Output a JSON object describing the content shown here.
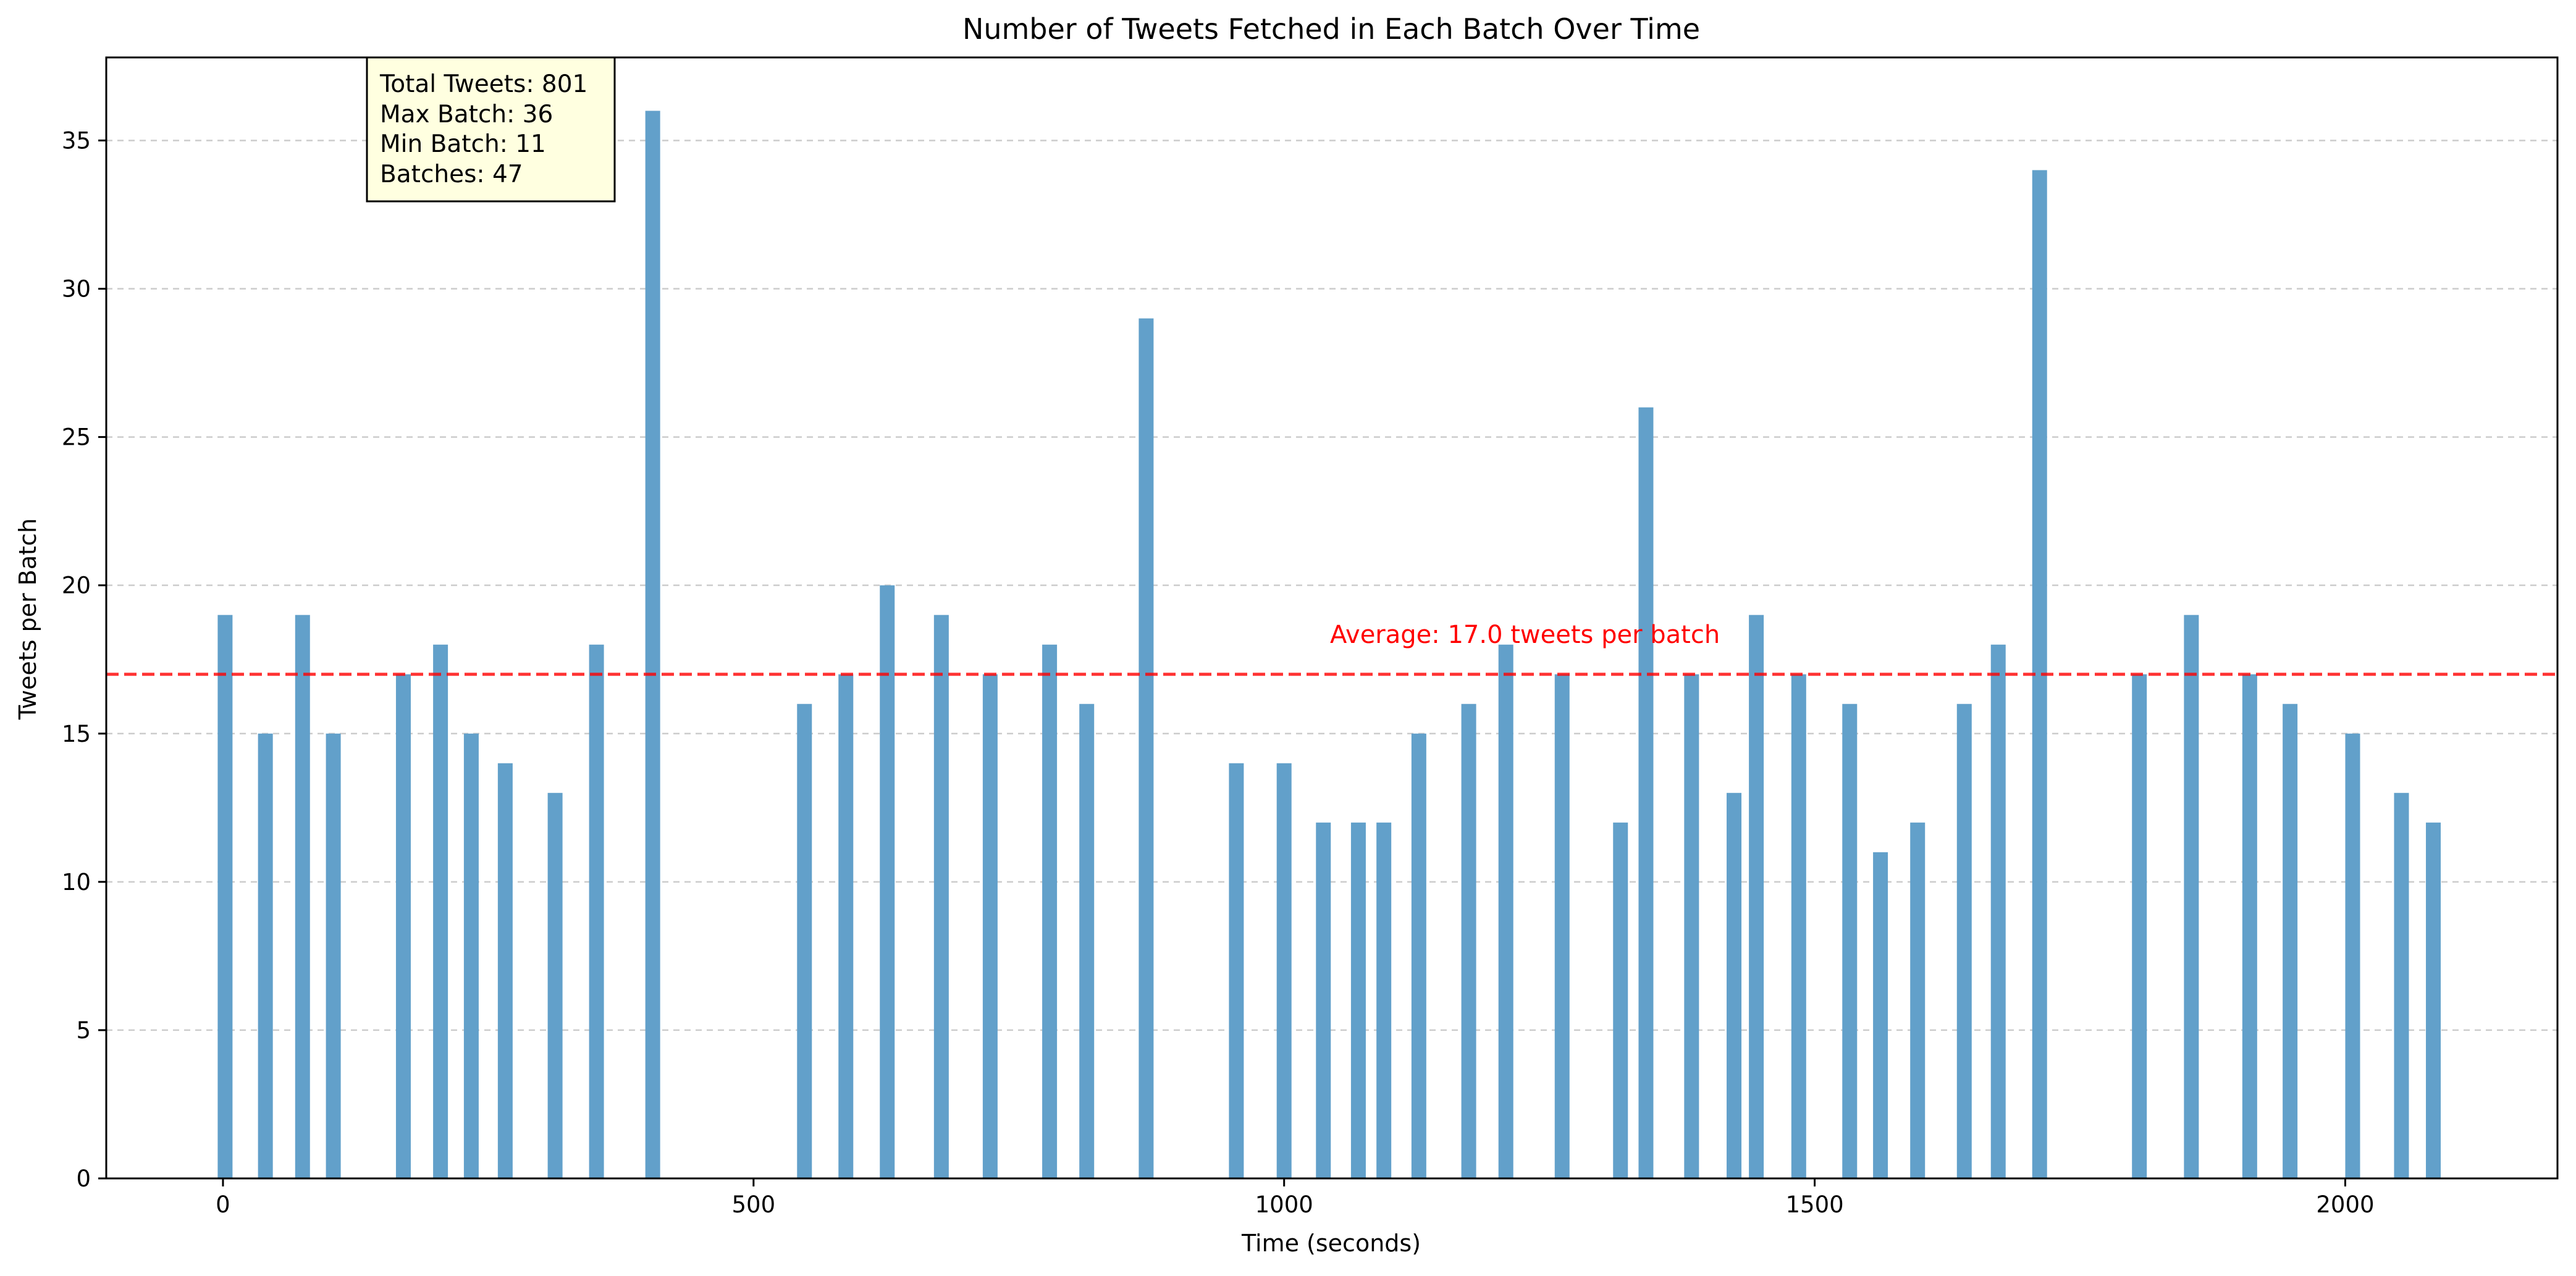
{
  "chart_data": {
    "type": "bar",
    "title": "Number of Tweets Fetched in Each Batch Over Time",
    "xlabel": "Time (seconds)",
    "ylabel": "Tweets per Batch",
    "xlim": [
      -110,
      2200
    ],
    "ylim": [
      0,
      37.8
    ],
    "xticks": [
      0,
      500,
      1000,
      1500,
      2000
    ],
    "yticks": [
      0,
      5,
      10,
      15,
      20,
      25,
      30,
      35
    ],
    "grid": "horizontal dashed",
    "bar_color": "#62a0ca",
    "x": [
      2,
      40,
      75,
      104,
      170,
      205,
      234,
      266,
      313,
      352,
      405,
      548,
      587,
      626,
      677,
      723,
      779,
      814,
      870,
      955,
      1000,
      1037,
      1070,
      1094,
      1127,
      1174,
      1209,
      1262,
      1317,
      1341,
      1384,
      1424,
      1445,
      1485,
      1533,
      1562,
      1597,
      1641,
      1673,
      1712,
      1806,
      1855,
      1910,
      1948,
      2007,
      2053,
      2083
    ],
    "values": [
      19,
      15,
      19,
      15,
      17,
      18,
      15,
      14,
      13,
      18,
      36,
      16,
      17,
      20,
      19,
      17,
      18,
      16,
      29,
      14,
      14,
      12,
      12,
      12,
      15,
      16,
      18,
      17,
      12,
      26,
      17,
      13,
      19,
      17,
      16,
      11,
      12,
      16,
      18,
      34,
      17,
      19,
      17,
      16,
      15,
      13,
      12
    ],
    "average": {
      "value": 17.0,
      "label": "Average: 17.0 tweets per batch",
      "color": "#ff0000"
    },
    "stats_box": {
      "lines": [
        "Total Tweets: 801",
        "Max Batch: 36",
        "Min Batch: 11",
        "Batches: 47"
      ]
    }
  }
}
